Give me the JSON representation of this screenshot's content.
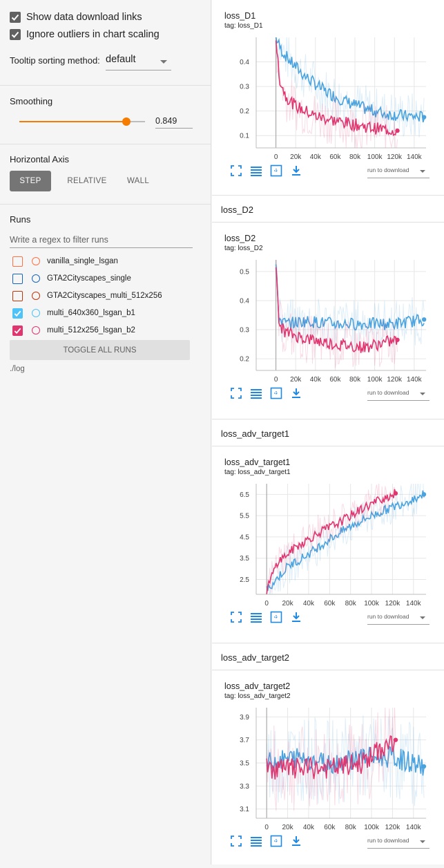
{
  "options": {
    "show_download": "Show data download links",
    "ignore_outliers": "Ignore outliers in chart scaling",
    "tooltip_label": "Tooltip sorting method:",
    "tooltip_value": "default"
  },
  "smoothing": {
    "title": "Smoothing",
    "value": "0.849",
    "fraction": 0.849
  },
  "horizontal_axis": {
    "title": "Horizontal Axis",
    "buttons": [
      "STEP",
      "RELATIVE",
      "WALL"
    ],
    "active": "STEP"
  },
  "runs": {
    "title": "Runs",
    "filter_placeholder": "Write a regex to filter runs",
    "items": [
      {
        "name": "vanilla_single_lsgan",
        "checked": false,
        "color": "#ff7043"
      },
      {
        "name": "GTA2Cityscapes_single",
        "checked": false,
        "color": "#1565c0"
      },
      {
        "name": "GTA2Cityscapes_multi_512x256",
        "checked": false,
        "color": "#bf360c"
      },
      {
        "name": "multi_640x360_lsgan_b1",
        "checked": true,
        "color": "#4fc3f7"
      },
      {
        "name": "multi_512x256_lsgan_b2",
        "checked": true,
        "color": "#e0366f"
      }
    ],
    "toggle_all": "TOGGLE ALL RUNS",
    "logdir": "./log"
  },
  "colors": {
    "accent": "#f57c00",
    "blue_run": "#4aa3df",
    "pink_run": "#e0366f",
    "tool_blue": "#1e88e5"
  },
  "run_to_download": "run to download",
  "groups": [
    {
      "header": "",
      "title": "loss_D1",
      "tag": "tag: loss_D1"
    },
    {
      "header": "loss_D2",
      "title": "loss_D2",
      "tag": "tag: loss_D2"
    },
    {
      "header": "loss_adv_target1",
      "title": "loss_adv_target1",
      "tag": "tag: loss_adv_target1"
    },
    {
      "header": "loss_adv_target2",
      "title": "loss_adv_target2",
      "tag": "tag: loss_adv_target2"
    }
  ],
  "chart_data": [
    {
      "type": "line",
      "title": "loss_D1",
      "x_ticks": [
        "0",
        "20k",
        "40k",
        "60k",
        "80k",
        "100k",
        "120k",
        "140k"
      ],
      "y_ticks": [
        "0.1",
        "0.2",
        "0.3",
        "0.4"
      ],
      "xlim": [
        -20000,
        152000
      ],
      "ylim": [
        0.05,
        0.5
      ],
      "series": [
        {
          "color": "#4aa3df",
          "x_end": 150000,
          "points": [
            [
              0,
              0.5
            ],
            [
              5000,
              0.45
            ],
            [
              15000,
              0.4
            ],
            [
              30000,
              0.34
            ],
            [
              50000,
              0.28
            ],
            [
              70000,
              0.24
            ],
            [
              90000,
              0.21
            ],
            [
              110000,
              0.19
            ],
            [
              130000,
              0.18
            ],
            [
              150000,
              0.175
            ]
          ]
        },
        {
          "color": "#e0366f",
          "x_end": 123000,
          "points": [
            [
              0,
              0.5
            ],
            [
              3000,
              0.34
            ],
            [
              10000,
              0.26
            ],
            [
              20000,
              0.22
            ],
            [
              40000,
              0.18
            ],
            [
              60000,
              0.16
            ],
            [
              80000,
              0.145
            ],
            [
              100000,
              0.13
            ],
            [
              123000,
              0.12
            ]
          ]
        }
      ]
    },
    {
      "type": "line",
      "title": "loss_D2",
      "x_ticks": [
        "0",
        "20k",
        "40k",
        "60k",
        "80k",
        "100k",
        "120k",
        "140k"
      ],
      "y_ticks": [
        "0.2",
        "0.3",
        "0.4",
        "0.5"
      ],
      "xlim": [
        -20000,
        152000
      ],
      "ylim": [
        0.16,
        0.54
      ],
      "series": [
        {
          "color": "#4aa3df",
          "x_end": 150000,
          "points": [
            [
              0,
              0.52
            ],
            [
              3000,
              0.34
            ],
            [
              10000,
              0.32
            ],
            [
              30000,
              0.33
            ],
            [
              60000,
              0.32
            ],
            [
              90000,
              0.32
            ],
            [
              120000,
              0.32
            ],
            [
              150000,
              0.335
            ]
          ]
        },
        {
          "color": "#e0366f",
          "x_end": 123000,
          "points": [
            [
              0,
              0.52
            ],
            [
              3000,
              0.32
            ],
            [
              10000,
              0.29
            ],
            [
              30000,
              0.27
            ],
            [
              60000,
              0.25
            ],
            [
              90000,
              0.24
            ],
            [
              123000,
              0.265
            ]
          ]
        }
      ]
    },
    {
      "type": "line",
      "title": "loss_adv_target1",
      "x_ticks": [
        "0",
        "20k",
        "40k",
        "60k",
        "80k",
        "100k",
        "120k",
        "140k"
      ],
      "y_ticks": [
        "2.5",
        "3.5",
        "4.5",
        "5.5",
        "6.5"
      ],
      "xlim": [
        -10000,
        152000
      ],
      "ylim": [
        1.8,
        7.0
      ],
      "series": [
        {
          "color": "#4aa3df",
          "x_end": 150000,
          "points": [
            [
              0,
              2.0
            ],
            [
              20000,
              3.1
            ],
            [
              40000,
              3.7
            ],
            [
              60000,
              4.4
            ],
            [
              80000,
              5.0
            ],
            [
              100000,
              5.5
            ],
            [
              120000,
              5.9
            ],
            [
              140000,
              6.3
            ],
            [
              150000,
              6.5
            ]
          ]
        },
        {
          "color": "#e0366f",
          "x_end": 123000,
          "points": [
            [
              0,
              2.0
            ],
            [
              10000,
              3.3
            ],
            [
              30000,
              4.1
            ],
            [
              50000,
              4.7
            ],
            [
              70000,
              5.2
            ],
            [
              90000,
              5.8
            ],
            [
              110000,
              6.3
            ],
            [
              123000,
              6.55
            ]
          ]
        }
      ]
    },
    {
      "type": "line",
      "title": "loss_adv_target2",
      "x_ticks": [
        "0",
        "20k",
        "40k",
        "60k",
        "80k",
        "100k",
        "120k",
        "140k"
      ],
      "y_ticks": [
        "3.1",
        "3.3",
        "3.5",
        "3.7",
        "3.9"
      ],
      "xlim": [
        -10000,
        152000
      ],
      "ylim": [
        3.02,
        3.98
      ],
      "series": [
        {
          "color": "#4aa3df",
          "x_end": 150000,
          "points": [
            [
              0,
              3.5
            ],
            [
              30000,
              3.55
            ],
            [
              60000,
              3.5
            ],
            [
              90000,
              3.55
            ],
            [
              120000,
              3.55
            ],
            [
              150000,
              3.47
            ]
          ]
        },
        {
          "color": "#e0366f",
          "x_end": 123000,
          "points": [
            [
              0,
              3.45
            ],
            [
              30000,
              3.45
            ],
            [
              60000,
              3.45
            ],
            [
              90000,
              3.5
            ],
            [
              123000,
              3.7
            ]
          ]
        }
      ]
    }
  ]
}
